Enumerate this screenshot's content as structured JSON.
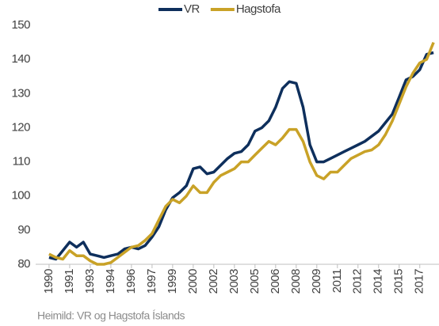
{
  "chart_data": {
    "type": "line",
    "x": [
      1990,
      1990.5,
      1991,
      1991.5,
      1992,
      1992.5,
      1993,
      1993.5,
      1994,
      1994.5,
      1995,
      1995.5,
      1996,
      1996.5,
      1997,
      1997.5,
      1998,
      1998.5,
      1999,
      1999.5,
      2000,
      2000.5,
      2001,
      2001.5,
      2002,
      2002.5,
      2003,
      2003.5,
      2004,
      2004.5,
      2005,
      2005.5,
      2006,
      2006.5,
      2007,
      2007.5,
      2008,
      2008.5,
      2009,
      2009.5,
      2010,
      2010.5,
      2011,
      2011.5,
      2012,
      2012.5,
      2013,
      2013.5,
      2014,
      2014.5,
      2015,
      2015.5,
      2016,
      2016.5,
      2017,
      2017.5,
      2018
    ],
    "series": [
      {
        "name": "VR",
        "color": "#0e2f5c",
        "values": [
          82,
          81.5,
          84,
          86.5,
          85,
          86.5,
          83,
          82.5,
          82,
          82.5,
          83,
          84.5,
          85,
          84.5,
          85.5,
          88,
          91,
          96,
          99.5,
          101,
          103,
          108,
          108.5,
          106.5,
          107,
          109,
          111,
          112.5,
          113,
          115,
          119,
          120,
          122,
          126,
          131.5,
          133.5,
          133,
          126,
          115,
          110,
          110,
          111,
          112,
          113,
          114,
          115,
          116,
          117.5,
          119,
          121.5,
          124,
          129,
          134,
          135,
          137,
          141.5,
          142
        ]
      },
      {
        "name": "Hagstofa",
        "color": "#c9a227",
        "values": [
          83,
          82,
          81.5,
          84,
          82.5,
          82.5,
          81,
          80,
          80,
          80.5,
          82,
          83.5,
          85,
          85.5,
          87,
          89,
          93,
          97,
          99,
          98,
          100,
          103,
          101,
          101,
          104,
          106,
          107,
          108,
          110,
          110,
          112,
          114,
          116,
          115,
          117,
          119.5,
          119.5,
          116,
          110,
          106,
          105,
          107,
          107,
          109,
          111,
          112,
          113,
          113.5,
          115,
          118,
          122,
          127,
          132,
          136,
          139,
          140,
          145
        ]
      }
    ],
    "xlim": [
      1989.6,
      2018.4
    ],
    "xticks": [
      {
        "value": 1990,
        "label": "1990"
      },
      {
        "value": 1991.5,
        "label": "1991"
      },
      {
        "value": 1993,
        "label": "1993"
      },
      {
        "value": 1994.5,
        "label": "1994"
      },
      {
        "value": 1996,
        "label": "1996"
      },
      {
        "value": 1997.5,
        "label": "1997"
      },
      {
        "value": 1999,
        "label": "1999"
      },
      {
        "value": 2000.5,
        "label": "2000"
      },
      {
        "value": 2002,
        "label": "2002"
      },
      {
        "value": 2003.5,
        "label": "2003"
      },
      {
        "value": 2005,
        "label": "2005"
      },
      {
        "value": 2006.5,
        "label": "2006"
      },
      {
        "value": 2008,
        "label": "2008"
      },
      {
        "value": 2009.5,
        "label": "2009"
      },
      {
        "value": 2011,
        "label": "2011"
      },
      {
        "value": 2012.5,
        "label": "2012"
      },
      {
        "value": 2014,
        "label": "2014"
      },
      {
        "value": 2015.5,
        "label": "2015"
      },
      {
        "value": 2017,
        "label": "2017"
      }
    ],
    "ylim": [
      80,
      150
    ],
    "yticks": [
      80,
      90,
      100,
      110,
      120,
      130,
      140,
      150
    ],
    "source": "Heimild: VR og Hagstofa Íslands"
  }
}
